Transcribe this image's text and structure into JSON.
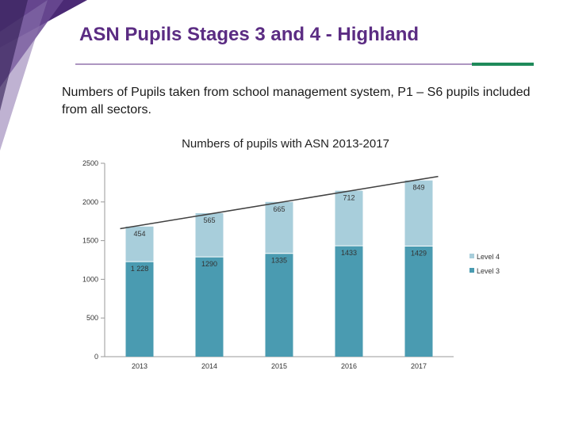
{
  "slide": {
    "title": "ASN Pupils Stages 3 and 4 - Highland",
    "subtitle": "Numbers of Pupils taken from school management system, P1 – S6 pupils included from all sectors."
  },
  "colors": {
    "title": "#5b2c83",
    "accent_green": "#1f8a5a",
    "corner_purple": "#4b2a75",
    "level3": "#4a9bb1",
    "level4": "#a8cedb",
    "trendline": "#404040"
  },
  "chart_data": {
    "type": "bar",
    "stacked": true,
    "title": "Numbers of pupils with ASN 2013-2017",
    "xlabel": "",
    "ylabel": "",
    "ylim": [
      0,
      2500
    ],
    "yticks": [
      "0",
      "500",
      "1000",
      "1500",
      "2000",
      "2500"
    ],
    "categories": [
      "2013",
      "2014",
      "2015",
      "2016",
      "2017"
    ],
    "series": [
      {
        "name": "Level 3",
        "values": [
          1228,
          1290,
          1335,
          1433,
          1429
        ],
        "labels": [
          "1 228",
          "1290",
          "1335",
          "1433",
          "1429"
        ]
      },
      {
        "name": "Level 4",
        "values": [
          454,
          565,
          665,
          712,
          849
        ],
        "labels": [
          "454",
          "565",
          "665",
          "712",
          "849"
        ]
      }
    ],
    "trendline": true,
    "legend": "right",
    "legend_order": [
      "Level 4",
      "Level 3"
    ],
    "grid": false
  }
}
